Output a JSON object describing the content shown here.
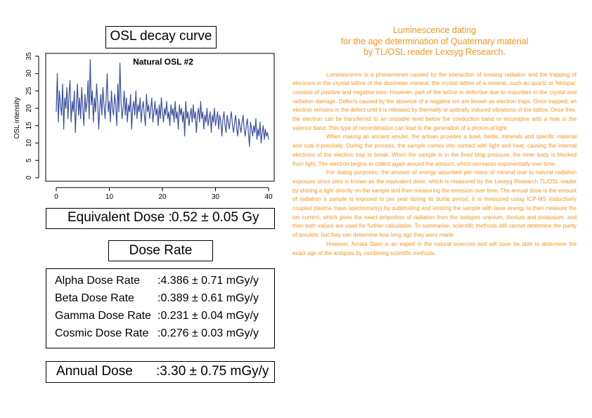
{
  "left": {
    "chart_title": "OSL decay curve",
    "equivalent_dose_label": "Equivalent Dose :",
    "equivalent_dose_value": "0.52 ± 0.05 Gy",
    "dose_rate_title": "Dose Rate",
    "dose_rates": [
      {
        "label": "Alpha Dose Rate",
        "value": ":4.386 ± 0.71  mGy/y"
      },
      {
        "label": "Beta Dose Rate",
        "value": ":0.389 ± 0.61  mGy/y"
      },
      {
        "label": "Gamma Dose Rate",
        "value": ":0.231 ± 0.04  mGy/y"
      },
      {
        "label": "Cosmic Dose Rate",
        "value": ":0.276 ± 0.03  mGy/y"
      }
    ],
    "annual_dose_label": "Annual Dose",
    "annual_dose_value": ":3.30 ± 0.75 mGy/y"
  },
  "chart_data": {
    "type": "line",
    "title": "Natural OSL #2",
    "xlabel": "",
    "ylabel": "OSL intensity",
    "xlim": [
      0,
      40
    ],
    "ylim": [
      0,
      35
    ],
    "xticks": [
      0,
      10,
      20,
      30,
      40
    ],
    "yticks": [
      0,
      5,
      10,
      15,
      20,
      25,
      30,
      35
    ],
    "grid": false,
    "series": [
      {
        "color": "#3a4fa0",
        "x": [
          0.0,
          0.2,
          0.4,
          0.6,
          0.8,
          1.0,
          1.2,
          1.4,
          1.6,
          1.8,
          2.0,
          2.2,
          2.4,
          2.6,
          2.8,
          3.0,
          3.2,
          3.4,
          3.6,
          3.8,
          4.0,
          4.2,
          4.4,
          4.6,
          4.8,
          5.0,
          5.2,
          5.4,
          5.6,
          5.8,
          6.0,
          6.2,
          6.4,
          6.6,
          6.8,
          7.0,
          7.2,
          7.4,
          7.6,
          7.8,
          8.0,
          8.2,
          8.4,
          8.6,
          8.8,
          9.0,
          9.2,
          9.4,
          9.6,
          9.8,
          10.0,
          10.2,
          10.4,
          10.6,
          10.8,
          11.0,
          11.2,
          11.4,
          11.6,
          11.8,
          12.0,
          12.2,
          12.4,
          12.6,
          12.8,
          13.0,
          13.2,
          13.4,
          13.6,
          13.8,
          14.0,
          14.2,
          14.4,
          14.6,
          14.8,
          15.0,
          15.2,
          15.4,
          15.6,
          15.8,
          16.0,
          16.2,
          16.4,
          16.6,
          16.8,
          17.0,
          17.2,
          17.4,
          17.6,
          17.8,
          18.0,
          18.2,
          18.4,
          18.6,
          18.8,
          19.0,
          19.2,
          19.4,
          19.6,
          19.8,
          20.0,
          20.2,
          20.4,
          20.6,
          20.8,
          21.0,
          21.2,
          21.4,
          21.6,
          21.8,
          22.0,
          22.2,
          22.4,
          22.6,
          22.8,
          23.0,
          23.2,
          23.4,
          23.6,
          23.8,
          24.0,
          24.2,
          24.4,
          24.6,
          24.8,
          25.0,
          25.2,
          25.4,
          25.6,
          25.8,
          26.0,
          26.2,
          26.4,
          26.6,
          26.8,
          27.0,
          27.2,
          27.4,
          27.6,
          27.8,
          28.0,
          28.2,
          28.4,
          28.6,
          28.8,
          29.0,
          29.2,
          29.4,
          29.6,
          29.8,
          30.0,
          30.2,
          30.4,
          30.6,
          30.8,
          31.0,
          31.2,
          31.4,
          31.6,
          31.8,
          32.0,
          32.2,
          32.4,
          32.6,
          32.8,
          33.0,
          33.2,
          33.4,
          33.6,
          33.8,
          34.0,
          34.2,
          34.4,
          34.6,
          34.8,
          35.0,
          35.2,
          35.4,
          35.6,
          35.8,
          36.0,
          36.2,
          36.4,
          36.6,
          36.8,
          37.0,
          37.2,
          37.4,
          37.6,
          37.8,
          38.0,
          38.2,
          38.4,
          38.6,
          38.8,
          39.0,
          39.2,
          39.4,
          39.6,
          39.8,
          40.0
        ],
        "y": [
          19,
          30,
          16,
          25,
          21,
          18,
          27,
          14,
          23,
          20,
          26,
          17,
          24,
          28,
          16,
          22,
          19,
          25,
          13,
          21,
          27,
          18,
          23,
          17,
          26,
          20,
          15,
          24,
          19,
          22,
          28,
          17,
          34,
          21,
          25,
          16,
          23,
          19,
          27,
          22,
          14,
          20,
          24,
          18,
          26,
          21,
          17,
          23,
          30,
          19,
          22,
          16,
          25,
          20,
          18,
          24,
          21,
          15,
          27,
          19,
          33,
          22,
          17,
          20,
          25,
          18,
          23,
          16,
          21,
          19,
          24,
          14,
          20,
          22,
          18,
          25,
          17,
          21,
          19,
          23,
          16,
          20,
          22,
          18,
          15,
          24,
          19,
          21,
          17,
          20,
          23,
          16,
          19,
          22,
          18,
          20,
          15,
          21,
          17,
          23,
          19,
          16,
          20,
          18,
          22,
          17,
          19,
          15,
          21,
          18,
          20,
          16,
          22,
          17,
          19,
          14,
          21,
          18,
          20,
          16,
          19,
          12,
          22,
          17,
          19,
          15,
          18,
          20,
          16,
          21,
          17,
          19,
          13,
          18,
          20,
          16,
          22,
          17,
          19,
          14,
          18,
          16,
          20,
          15,
          17,
          19,
          13,
          18,
          16,
          20,
          15,
          17,
          19,
          14,
          18,
          16,
          12,
          17,
          19,
          15,
          13,
          18,
          16,
          14,
          17,
          19,
          15,
          13,
          16,
          18,
          14,
          12,
          17,
          15,
          13,
          16,
          18,
          14,
          12,
          15,
          17,
          13,
          9,
          16,
          14,
          12,
          15,
          13,
          17,
          11,
          14,
          12,
          16,
          10,
          13,
          15,
          11,
          14,
          12,
          13,
          11
        ]
      }
    ]
  },
  "right": {
    "heading_lines": [
      "Luminescence dating",
      "for the age determination of Quaternary material",
      "by TL/OSL reader Lexsyg Research."
    ],
    "paragraphs": [
      "Luminescence is a phenomenon caused by the interaction of ionising radiation and the trapping of electrons in the crystal lattice of the dosimeter mineral. the crystal lattice of a mineral, such as quartz or feldspar, consists of positive and negative ions. However, part of the lattice is defective due to impurities in the crystal and radiation damage. Defects caused by the absence of a negative ion are known as electron traps. Once trapped, an electron remains in the defect until it is released by thermally or optically induced vibrations of the lattice. Once free, the electron can be transferred to an unstable level below the conduction band or recombine with a hole in the valence band. This type of recombination can lead to the generation of a photon of light.",
      "When making an ancient amulet, the artisan provides a bowl, herbs, minerals and specific material and cuts it precisely. During the process, the sample comes into contact with light and heat, causing the internal electrons of the electron trap to break. When the sample is in the fixed blog pressure, the inner body is blocked from light. The electron begins to collect again around the amount, which increases exponentially over time.",
      "For dating purposes, the amount of energy absorbed per mass of mineral due to natural radiation exposure since zero is known as the equivalent dose, which is measured by the Lexsyg Research TL/OSL reader by shining a light directly on the sample and then measuring the emission over time. The annual dose is the amount of radiation a sample is exposed to per year during its burial period. It is measured using ICP-MS (inductively coupled plasma mass spectrometry) by sublimating and ionizing the sample with laser energy to then measure the ion current, which gives the exact proportion of radiation from the isotopes uranium, thorium and potassium, and then both values are used for further calculation. To summarise, scientific methods still cannot determine the purity of amulets, but they can determine how long ago they were made.",
      "However, Amata Siam is an expert in the natural sciences and will soon be able to determine the exact age of the antiques by combining scientific methods."
    ]
  }
}
